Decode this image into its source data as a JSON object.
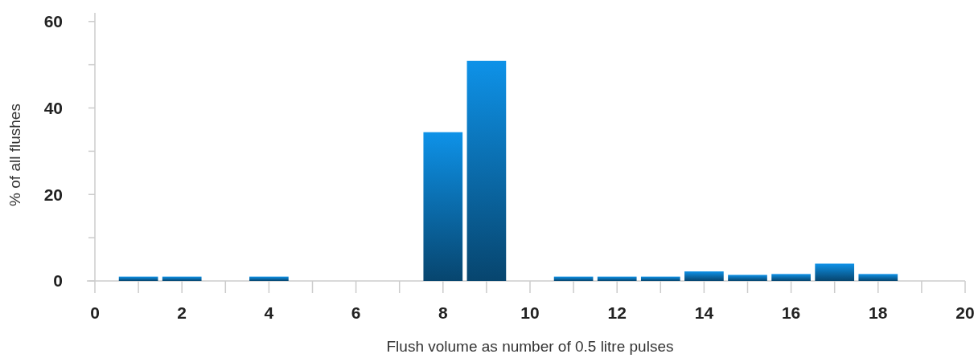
{
  "chart_data": {
    "type": "bar",
    "xlabel": "Flush volume as number of 0.5 litre pulses",
    "ylabel": "% of all flushes",
    "x": [
      1,
      2,
      4,
      8,
      9,
      11,
      12,
      13,
      14,
      15,
      16,
      17,
      18
    ],
    "values": [
      1,
      1,
      1,
      34.4,
      50.9,
      1,
      1,
      1,
      2.2,
      1.4,
      1.6,
      4,
      1.6
    ],
    "color": "#0a6aa8",
    "xlim": [
      0,
      20
    ],
    "xticks": [
      0,
      {
        "value": 1,
        "label": null
      },
      2,
      {
        "value": 3,
        "label": null
      },
      4,
      {
        "value": 5,
        "label": null
      },
      6,
      {
        "value": 7,
        "label": null
      },
      8,
      {
        "value": 9,
        "label": null
      },
      10,
      {
        "value": 11,
        "label": null
      },
      12,
      {
        "value": 13,
        "label": null
      },
      14,
      {
        "value": 15,
        "label": null
      },
      16,
      {
        "value": 17,
        "label": null
      },
      18,
      {
        "value": 19,
        "label": null
      },
      20
    ],
    "ylim": [
      0,
      62
    ],
    "yticks": [
      0,
      {
        "value": 10,
        "label": null
      },
      20,
      {
        "value": 30,
        "label": null
      },
      40,
      {
        "value": 50,
        "label": null
      },
      60
    ],
    "grid": false
  }
}
